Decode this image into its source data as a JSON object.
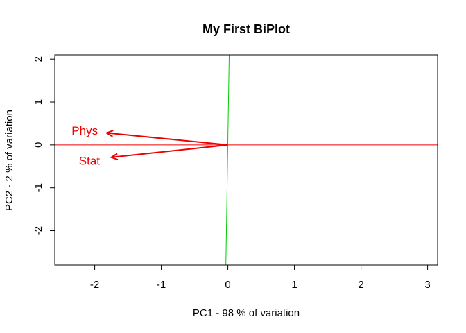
{
  "chart_data": {
    "type": "biplot",
    "title": "My First BiPlot",
    "xlabel": "PC1 - 98 % of variation",
    "ylabel": "PC2 - 2 % of variation",
    "xlim": [
      -2.6,
      3.15
    ],
    "ylim": [
      -2.8,
      2.1
    ],
    "xticks": [
      -2,
      -1,
      0,
      1,
      2,
      3
    ],
    "yticks": [
      -2,
      -1,
      0,
      1,
      2
    ],
    "xtick_labels": [
      "-2",
      "-1",
      "0",
      "1",
      "2",
      "3"
    ],
    "ytick_labels": [
      "-2",
      "-1",
      "0",
      "1",
      "2"
    ],
    "reference_lines": {
      "horizontal": {
        "y": 0,
        "color": "#ee0000"
      },
      "vertical": {
        "from": [
          -0.03,
          -2.8
        ],
        "to": [
          0.02,
          2.1
        ],
        "color": "#00cc00"
      }
    },
    "vectors": [
      {
        "name": "Phys",
        "x": -1.82,
        "y": 0.28,
        "label_x": -2.15,
        "label_y": 0.34
      },
      {
        "name": "Stat",
        "x": -1.75,
        "y": -0.29,
        "label_x": -2.08,
        "label_y": -0.37
      }
    ],
    "vector_color": "#ee0000",
    "grid": false,
    "legend": "none"
  }
}
